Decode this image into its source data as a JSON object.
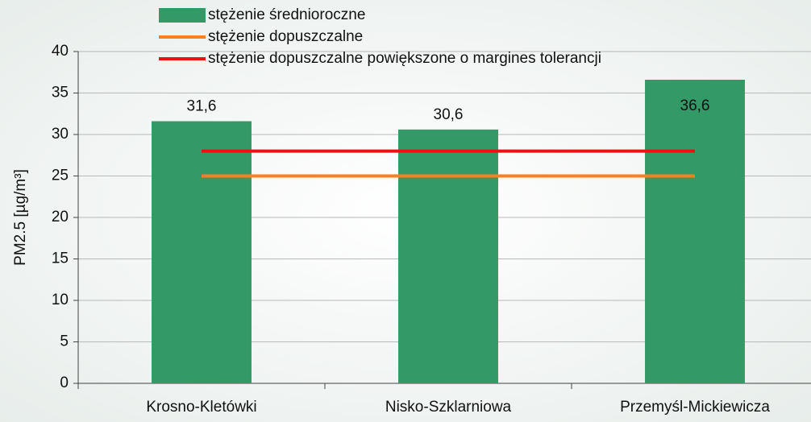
{
  "chart_data": {
    "type": "bar",
    "y_label": "PM2.5 [µg/m³]",
    "categories": [
      "Krosno-Kletówki",
      "Nisko-Szklarniowa",
      "Przemyśl-Mickiewicza"
    ],
    "series": [
      {
        "name": "stężenie średnioroczne",
        "type": "bar",
        "color": "#339966",
        "values": [
          31.6,
          30.6,
          36.6
        ],
        "value_labels": [
          "31,6",
          "30,6",
          "36,6"
        ]
      },
      {
        "name": "stężenie dopuszczalne",
        "type": "line",
        "color": "#ff7f1e",
        "values": [
          25,
          25,
          25
        ]
      },
      {
        "name": "stężenie dopuszczalne powiększone o margines tolerancji",
        "type": "line",
        "color": "#ee1111",
        "values": [
          28,
          28,
          28
        ]
      }
    ],
    "ylim": [
      0,
      40
    ],
    "yticks": [
      0,
      5,
      10,
      15,
      20,
      25,
      30,
      35,
      40
    ],
    "grid": true,
    "legend": "top"
  }
}
